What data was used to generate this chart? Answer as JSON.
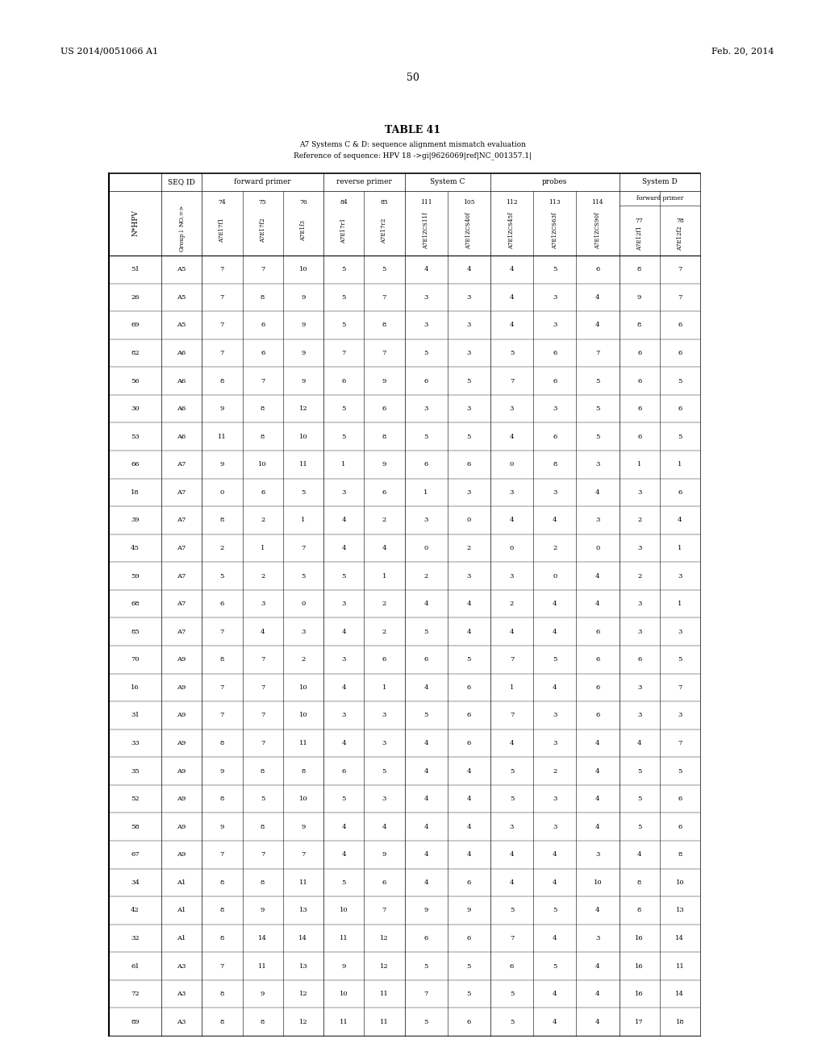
{
  "page_header_left": "US 2014/0051066 A1",
  "page_header_right": "Feb. 20, 2014",
  "page_number": "50",
  "table_title": "TABLE 41",
  "subtitle_line1": "A7 Systems C & D: sequence alignment mismatch evaluation",
  "subtitle_line2": "Reference of sequence: HPV 18 ->gi|9626069|ref|NC_001357.1|",
  "col_subheaders": [
    "N*HPV",
    "NO.=>\nGroup↓",
    "74\nA7E17f1",
    "75\nA7E17f2",
    "76\nA7E1f3",
    "84\nA7E17r1",
    "85\nA7E17r2",
    "111\nA7E1ZCS11f",
    "105\nA7E1ZCS40f",
    "112\nA7E1ZCS45f",
    "113\nA7E1ZCS63f",
    "114\nA7E1ZCS90f",
    "77\nA7E12f1",
    "78\nA7E12f2"
  ],
  "groups": [
    {
      "label": "",
      "start": 0,
      "end": 0
    },
    {
      "label": "SEQ ID",
      "start": 1,
      "end": 1
    },
    {
      "label": "forward primer",
      "start": 2,
      "end": 4
    },
    {
      "label": "reverse primer",
      "start": 5,
      "end": 6
    },
    {
      "label": "System C",
      "start": 7,
      "end": 8
    },
    {
      "label": "probes",
      "start": 9,
      "end": 11
    },
    {
      "label": "System D",
      "start": 12,
      "end": 13
    }
  ],
  "system_d_sublabel": "forward primer",
  "rows": [
    [
      51,
      "A5",
      7,
      7,
      10,
      5,
      5,
      4,
      4,
      4,
      5,
      6,
      8,
      7
    ],
    [
      26,
      "A5",
      7,
      8,
      9,
      5,
      7,
      3,
      3,
      4,
      3,
      4,
      9,
      7
    ],
    [
      69,
      "A5",
      7,
      6,
      9,
      5,
      8,
      3,
      3,
      4,
      3,
      4,
      8,
      6
    ],
    [
      82,
      "A6",
      7,
      6,
      9,
      7,
      7,
      5,
      3,
      5,
      6,
      7,
      6,
      6
    ],
    [
      56,
      "A6",
      8,
      7,
      9,
      6,
      9,
      6,
      5,
      7,
      6,
      5,
      6,
      5
    ],
    [
      30,
      "A6",
      9,
      8,
      12,
      5,
      6,
      3,
      3,
      3,
      3,
      5,
      6,
      6
    ],
    [
      53,
      "A6",
      11,
      8,
      10,
      5,
      8,
      5,
      5,
      4,
      6,
      5,
      6,
      5
    ],
    [
      66,
      "A7",
      9,
      10,
      11,
      1,
      9,
      6,
      6,
      0,
      8,
      3,
      1,
      1
    ],
    [
      18,
      "A7",
      0,
      6,
      5,
      3,
      6,
      1,
      3,
      3,
      3,
      4,
      3,
      6
    ],
    [
      39,
      "A7",
      8,
      2,
      1,
      4,
      2,
      3,
      0,
      4,
      4,
      3,
      2,
      4
    ],
    [
      45,
      "A7",
      2,
      1,
      7,
      4,
      4,
      0,
      2,
      0,
      2,
      0,
      3,
      1
    ],
    [
      59,
      "A7",
      5,
      2,
      5,
      5,
      1,
      2,
      3,
      3,
      0,
      4,
      2,
      3
    ],
    [
      68,
      "A7",
      6,
      3,
      0,
      3,
      2,
      4,
      4,
      2,
      4,
      4,
      3,
      1
    ],
    [
      85,
      "A7",
      7,
      4,
      3,
      4,
      2,
      5,
      4,
      4,
      4,
      6,
      3,
      3
    ],
    [
      70,
      "A9",
      8,
      7,
      2,
      3,
      6,
      6,
      5,
      7,
      5,
      6,
      6,
      5
    ],
    [
      16,
      "A9",
      7,
      7,
      10,
      4,
      1,
      4,
      6,
      1,
      4,
      6,
      3,
      7
    ],
    [
      31,
      "A9",
      7,
      7,
      10,
      3,
      3,
      5,
      6,
      7,
      3,
      6,
      3,
      3
    ],
    [
      33,
      "A9",
      8,
      7,
      11,
      4,
      3,
      4,
      6,
      4,
      3,
      4,
      4,
      7
    ],
    [
      35,
      "A9",
      9,
      8,
      8,
      6,
      5,
      4,
      4,
      5,
      2,
      4,
      5,
      5
    ],
    [
      52,
      "A9",
      8,
      5,
      10,
      5,
      3,
      4,
      4,
      5,
      3,
      4,
      5,
      6
    ],
    [
      58,
      "A9",
      9,
      8,
      9,
      4,
      4,
      4,
      4,
      3,
      3,
      4,
      5,
      6
    ],
    [
      67,
      "A9",
      7,
      7,
      7,
      4,
      9,
      4,
      4,
      4,
      4,
      3,
      4,
      8
    ],
    [
      34,
      "A1",
      8,
      8,
      11,
      5,
      6,
      4,
      6,
      4,
      4,
      10,
      8,
      10
    ],
    [
      42,
      "A1",
      8,
      9,
      13,
      10,
      7,
      9,
      9,
      5,
      5,
      4,
      8,
      13
    ],
    [
      32,
      "A1",
      8,
      14,
      14,
      11,
      12,
      6,
      6,
      7,
      4,
      3,
      16,
      14
    ],
    [
      61,
      "A3",
      7,
      11,
      13,
      9,
      12,
      5,
      5,
      6,
      5,
      4,
      16,
      11
    ],
    [
      72,
      "A3",
      8,
      9,
      12,
      10,
      11,
      7,
      5,
      5,
      4,
      4,
      16,
      14
    ],
    [
      89,
      "A3",
      8,
      8,
      12,
      11,
      11,
      5,
      6,
      5,
      4,
      4,
      17,
      18
    ]
  ],
  "background_color": "#ffffff",
  "text_color": "#000000"
}
